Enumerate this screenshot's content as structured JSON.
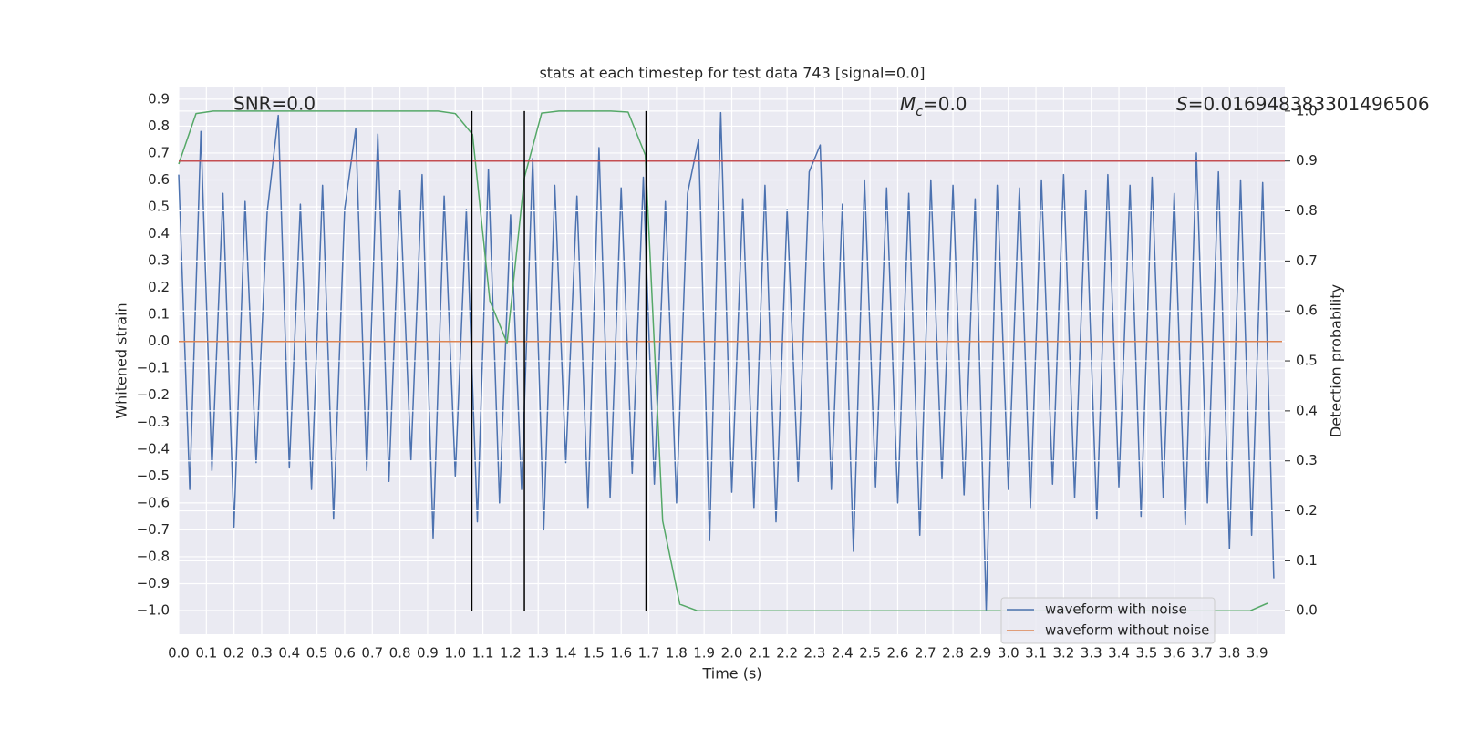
{
  "chart_data": {
    "type": "line",
    "title": "stats at each timestep for test data 743 [signal=0.0]",
    "xlabel": "Time (s)",
    "ylabel": "Whitened strain",
    "y2label": "Detection probability",
    "annotations": [
      "SNR=0.0",
      {
        "symbol": "M",
        "subscript": "c",
        "text": "=0.0"
      },
      {
        "symbol": "S",
        "text": "=0.016948383301496506"
      }
    ],
    "xlim": [
      0,
      4.0
    ],
    "ylim": [
      -1.088,
      0.947
    ],
    "y2lim": [
      -0.047,
      1.049
    ],
    "grid": true,
    "legend": "lower right",
    "xticks": [
      {
        "value": 0,
        "label": "0.0"
      },
      {
        "value": 0.1,
        "label": "0.1"
      },
      {
        "value": 0.2,
        "label": "0.2"
      },
      {
        "value": 0.3,
        "label": "0.3"
      },
      {
        "value": 0.4,
        "label": "0.4"
      },
      {
        "value": 0.5,
        "label": "0.5"
      },
      {
        "value": 0.6,
        "label": "0.6"
      },
      {
        "value": 0.7,
        "label": "0.7"
      },
      {
        "value": 0.8,
        "label": "0.8"
      },
      {
        "value": 0.9,
        "label": "0.9"
      },
      {
        "value": 1.0,
        "label": "1.0"
      },
      {
        "value": 1.1,
        "label": "1.1"
      },
      {
        "value": 1.2,
        "label": "1.2"
      },
      {
        "value": 1.3,
        "label": "1.3"
      },
      {
        "value": 1.4,
        "label": "1.4"
      },
      {
        "value": 1.5,
        "label": "1.5"
      },
      {
        "value": 1.6,
        "label": "1.6"
      },
      {
        "value": 1.7,
        "label": "1.7"
      },
      {
        "value": 1.8,
        "label": "1.8"
      },
      {
        "value": 1.9,
        "label": "1.9"
      },
      {
        "value": 2.0,
        "label": "2.0"
      },
      {
        "value": 2.1,
        "label": "2.1"
      },
      {
        "value": 2.2,
        "label": "2.2"
      },
      {
        "value": 2.3,
        "label": "2.3"
      },
      {
        "value": 2.4,
        "label": "2.4"
      },
      {
        "value": 2.5,
        "label": "2.5"
      },
      {
        "value": 2.6,
        "label": "2.6"
      },
      {
        "value": 2.7,
        "label": "2.7"
      },
      {
        "value": 2.8,
        "label": "2.8"
      },
      {
        "value": 2.9,
        "label": "2.9"
      },
      {
        "value": 3.0,
        "label": "3.0"
      },
      {
        "value": 3.1,
        "label": "3.1"
      },
      {
        "value": 3.2,
        "label": "3.2"
      },
      {
        "value": 3.3,
        "label": "3.3"
      },
      {
        "value": 3.4,
        "label": "3.4"
      },
      {
        "value": 3.5,
        "label": "3.5"
      },
      {
        "value": 3.6,
        "label": "3.6"
      },
      {
        "value": 3.7,
        "label": "3.7"
      },
      {
        "value": 3.8,
        "label": "3.8"
      },
      {
        "value": 3.9,
        "label": "3.9"
      }
    ],
    "yticks": [
      {
        "value": -1.0,
        "label": "−1.0"
      },
      {
        "value": -0.9,
        "label": "−0.9"
      },
      {
        "value": -0.8,
        "label": "−0.8"
      },
      {
        "value": -0.7,
        "label": "−0.7"
      },
      {
        "value": -0.6,
        "label": "−0.6"
      },
      {
        "value": -0.5,
        "label": "−0.5"
      },
      {
        "value": -0.4,
        "label": "−0.4"
      },
      {
        "value": -0.3,
        "label": "−0.3"
      },
      {
        "value": -0.2,
        "label": "−0.2"
      },
      {
        "value": -0.1,
        "label": "−0.1"
      },
      {
        "value": 0,
        "label": "0.0"
      },
      {
        "value": 0.1,
        "label": "0.1"
      },
      {
        "value": 0.2,
        "label": "0.2"
      },
      {
        "value": 0.3,
        "label": "0.3"
      },
      {
        "value": 0.4,
        "label": "0.4"
      },
      {
        "value": 0.5,
        "label": "0.5"
      },
      {
        "value": 0.6,
        "label": "0.6"
      },
      {
        "value": 0.7,
        "label": "0.7"
      },
      {
        "value": 0.8,
        "label": "0.8"
      },
      {
        "value": 0.9,
        "label": "0.9"
      }
    ],
    "y2ticks": [
      {
        "value": 0,
        "label": "0.0"
      },
      {
        "value": 0.1,
        "label": "0.1"
      },
      {
        "value": 0.2,
        "label": "0.2"
      },
      {
        "value": 0.3,
        "label": "0.3"
      },
      {
        "value": 0.4,
        "label": "0.4"
      },
      {
        "value": 0.5,
        "label": "0.5"
      },
      {
        "value": 0.6,
        "label": "0.6"
      },
      {
        "value": 0.7,
        "label": "0.7"
      },
      {
        "value": 0.8,
        "label": "0.8"
      },
      {
        "value": 0.9,
        "label": "0.9"
      },
      {
        "value": 1.0,
        "label": "1.0"
      }
    ],
    "series": [
      {
        "name": "waveform with noise",
        "color": "#4c72b0",
        "x": [
          0,
          0.04,
          0.08,
          0.12,
          0.16,
          0.2,
          0.24,
          0.28,
          0.32,
          0.36,
          0.4,
          0.44,
          0.48,
          0.52,
          0.56,
          0.6,
          0.64,
          0.68,
          0.72,
          0.76,
          0.8,
          0.84,
          0.88,
          0.92,
          0.96,
          1.0,
          1.04,
          1.08,
          1.12,
          1.16,
          1.2,
          1.24,
          1.28,
          1.32,
          1.36,
          1.4,
          1.44,
          1.48,
          1.52,
          1.56,
          1.6,
          1.64,
          1.68,
          1.72,
          1.76,
          1.8,
          1.84,
          1.88,
          1.92,
          1.96,
          2.0,
          2.04,
          2.08,
          2.12,
          2.16,
          2.2,
          2.24,
          2.28,
          2.32,
          2.36,
          2.4,
          2.44,
          2.48,
          2.52,
          2.56,
          2.6,
          2.64,
          2.68,
          2.72,
          2.76,
          2.8,
          2.84,
          2.88,
          2.92,
          2.96,
          3.0,
          3.04,
          3.08,
          3.12,
          3.16,
          3.2,
          3.24,
          3.28,
          3.32,
          3.36,
          3.4,
          3.44,
          3.48,
          3.52,
          3.56,
          3.6,
          3.64,
          3.68,
          3.72,
          3.76,
          3.8,
          3.84,
          3.88,
          3.92,
          3.96
        ],
        "values": [
          0.62,
          -0.55,
          0.78,
          -0.48,
          0.55,
          -0.69,
          0.52,
          -0.45,
          0.48,
          0.84,
          -0.47,
          0.51,
          -0.55,
          0.58,
          -0.66,
          0.49,
          0.79,
          -0.48,
          0.77,
          -0.52,
          0.56,
          -0.44,
          0.62,
          -0.73,
          0.54,
          -0.5,
          0.49,
          -0.67,
          0.64,
          -0.6,
          0.47,
          -0.55,
          0.68,
          -0.7,
          0.58,
          -0.45,
          0.54,
          -0.62,
          0.72,
          -0.58,
          0.57,
          -0.49,
          0.61,
          -0.53,
          0.52,
          -0.6,
          0.55,
          0.75,
          -0.74,
          0.85,
          -0.56,
          0.53,
          -0.62,
          0.58,
          -0.67,
          0.49,
          -0.52,
          0.63,
          0.73,
          -0.55,
          0.51,
          -0.78,
          0.6,
          -0.54,
          0.57,
          -0.6,
          0.55,
          -0.72,
          0.6,
          -0.51,
          0.58,
          -0.57,
          0.53,
          -1.0,
          0.58,
          -0.55,
          0.57,
          -0.62,
          0.6,
          -0.53,
          0.62,
          -0.58,
          0.56,
          -0.66,
          0.62,
          -0.54,
          0.58,
          -0.65,
          0.61,
          -0.58,
          0.55,
          -0.68,
          0.7,
          -0.6,
          0.63,
          -0.77,
          0.6,
          -0.72,
          0.59,
          -0.88
        ]
      },
      {
        "name": "waveform without noise",
        "color": "#dd8452",
        "x": [
          0,
          3.99
        ],
        "values": [
          0,
          0
        ]
      }
    ],
    "detection": {
      "color": "#55a868",
      "axis": "y2",
      "x": [
        0,
        0.0625,
        0.125,
        0.1875,
        0.25,
        0.3125,
        0.375,
        0.4375,
        0.5,
        0.5625,
        0.625,
        0.6875,
        0.75,
        0.8125,
        0.875,
        0.9375,
        1.0,
        1.0625,
        1.125,
        1.1875,
        1.25,
        1.3125,
        1.375,
        1.4375,
        1.5,
        1.5625,
        1.625,
        1.6875,
        1.75,
        1.8125,
        1.875,
        1.9375,
        2.0,
        2.0625,
        2.125,
        2.1875,
        2.25,
        2.3125,
        2.375,
        2.4375,
        2.5,
        2.5625,
        2.625,
        2.6875,
        2.75,
        2.8125,
        2.875,
        2.9375,
        3.0,
        3.0625,
        3.125,
        3.1875,
        3.25,
        3.3125,
        3.375,
        3.4375,
        3.5,
        3.5625,
        3.625,
        3.6875,
        3.75,
        3.8125,
        3.875,
        3.9375
      ],
      "values": [
        0.894,
        0.995,
        1.0,
        1.0,
        1.0,
        1.0,
        1.0,
        1.0,
        1.0,
        1.0,
        1.0,
        1.0,
        1.0,
        1.0,
        1.0,
        1.0,
        0.995,
        0.953,
        0.62,
        0.536,
        0.867,
        0.996,
        1.0,
        1.0,
        1.0,
        1.0,
        0.998,
        0.912,
        0.18,
        0.013,
        0.0,
        0.0,
        0.0,
        0.0,
        0.0,
        0.0,
        0.0,
        0.0,
        0.0,
        0.0,
        0.0,
        0.0,
        0.0,
        0.0,
        0.0,
        0.0,
        0.0,
        0.0,
        0.0,
        0.0,
        0.0,
        0.0,
        0.0,
        0.0,
        0.0,
        0.0,
        0.0,
        0.0,
        0.0,
        0.0,
        0.0,
        0.0,
        0.0,
        0.015
      ]
    },
    "threshold": {
      "value": 0.9,
      "color": "#c44e52",
      "axis": "y2"
    },
    "vlines": {
      "x": [
        1.06,
        1.25,
        1.69
      ],
      "color": "#000000"
    }
  }
}
